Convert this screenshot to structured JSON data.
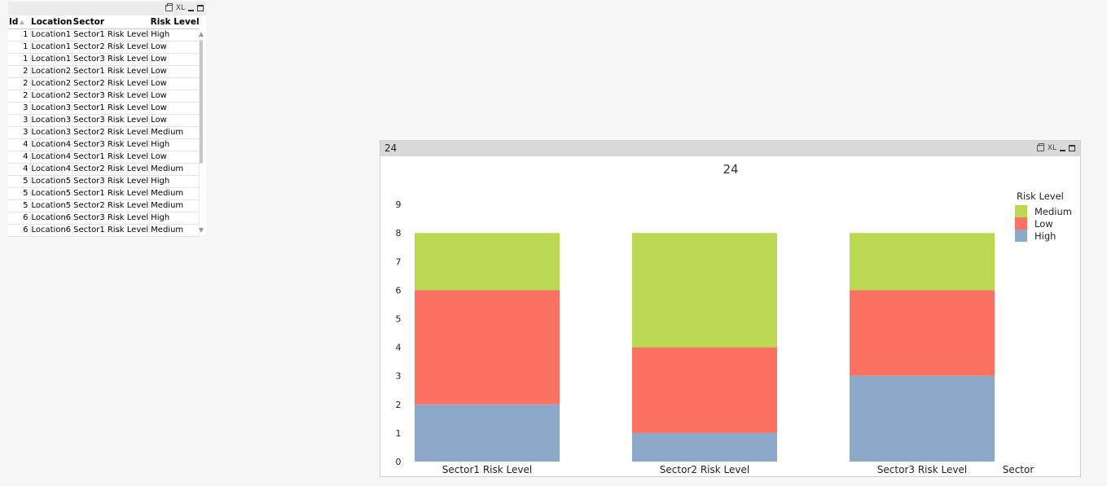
{
  "table": {
    "headers": [
      "Id",
      "Location",
      "Sector",
      "Risk Level"
    ],
    "rows": [
      [
        "1",
        "Location1",
        "Sector1 Risk Level",
        "High"
      ],
      [
        "1",
        "Location1",
        "Sector2 Risk Level",
        "Low"
      ],
      [
        "1",
        "Location1",
        "Sector3 Risk Level",
        "Low"
      ],
      [
        "2",
        "Location2",
        "Sector1 Risk Level",
        "Low"
      ],
      [
        "2",
        "Location2",
        "Sector2 Risk Level",
        "Low"
      ],
      [
        "2",
        "Location2",
        "Sector3 Risk Level",
        "Low"
      ],
      [
        "3",
        "Location3",
        "Sector1 Risk Level",
        "Low"
      ],
      [
        "3",
        "Location3",
        "Sector3 Risk Level",
        "Low"
      ],
      [
        "3",
        "Location3",
        "Sector2 Risk Level",
        "Medium"
      ],
      [
        "4",
        "Location4",
        "Sector3 Risk Level",
        "High"
      ],
      [
        "4",
        "Location4",
        "Sector1 Risk Level",
        "Low"
      ],
      [
        "4",
        "Location4",
        "Sector2 Risk Level",
        "Medium"
      ],
      [
        "5",
        "Location5",
        "Sector3 Risk Level",
        "High"
      ],
      [
        "5",
        "Location5",
        "Sector1 Risk Level",
        "Medium"
      ],
      [
        "5",
        "Location5",
        "Sector2 Risk Level",
        "Medium"
      ],
      [
        "6",
        "Location6",
        "Sector3 Risk Level",
        "High"
      ],
      [
        "6",
        "Location6",
        "Sector1 Risk Level",
        "Medium"
      ]
    ],
    "caption_icons": {
      "print": "print-icon",
      "xl_label": "XL",
      "minimize": "minimize-icon",
      "maximize": "maximize-icon"
    }
  },
  "chart_window": {
    "caption": "24",
    "xl_label": "XL"
  },
  "chart_data": {
    "type": "bar",
    "stacked": true,
    "title": "24",
    "xlabel": "Sector",
    "ylabel": "",
    "ylim": [
      0,
      9
    ],
    "yticks": [
      "0",
      "1",
      "2",
      "3",
      "4",
      "5",
      "6",
      "7",
      "8",
      "9"
    ],
    "categories": [
      "Sector1 Risk Level",
      "Sector2 Risk Level",
      "Sector3 Risk Level"
    ],
    "legend_title": "Risk Level",
    "legend_position": "top-right",
    "legend_order": [
      "Medium",
      "Low",
      "High"
    ],
    "series": [
      {
        "name": "High",
        "color": "#8da9c9",
        "values": [
          2,
          1,
          3
        ]
      },
      {
        "name": "Low",
        "color": "#fb7262",
        "values": [
          4,
          3,
          3
        ]
      },
      {
        "name": "Medium",
        "color": "#bbd852",
        "values": [
          2,
          4,
          2
        ]
      }
    ],
    "grid": false
  }
}
